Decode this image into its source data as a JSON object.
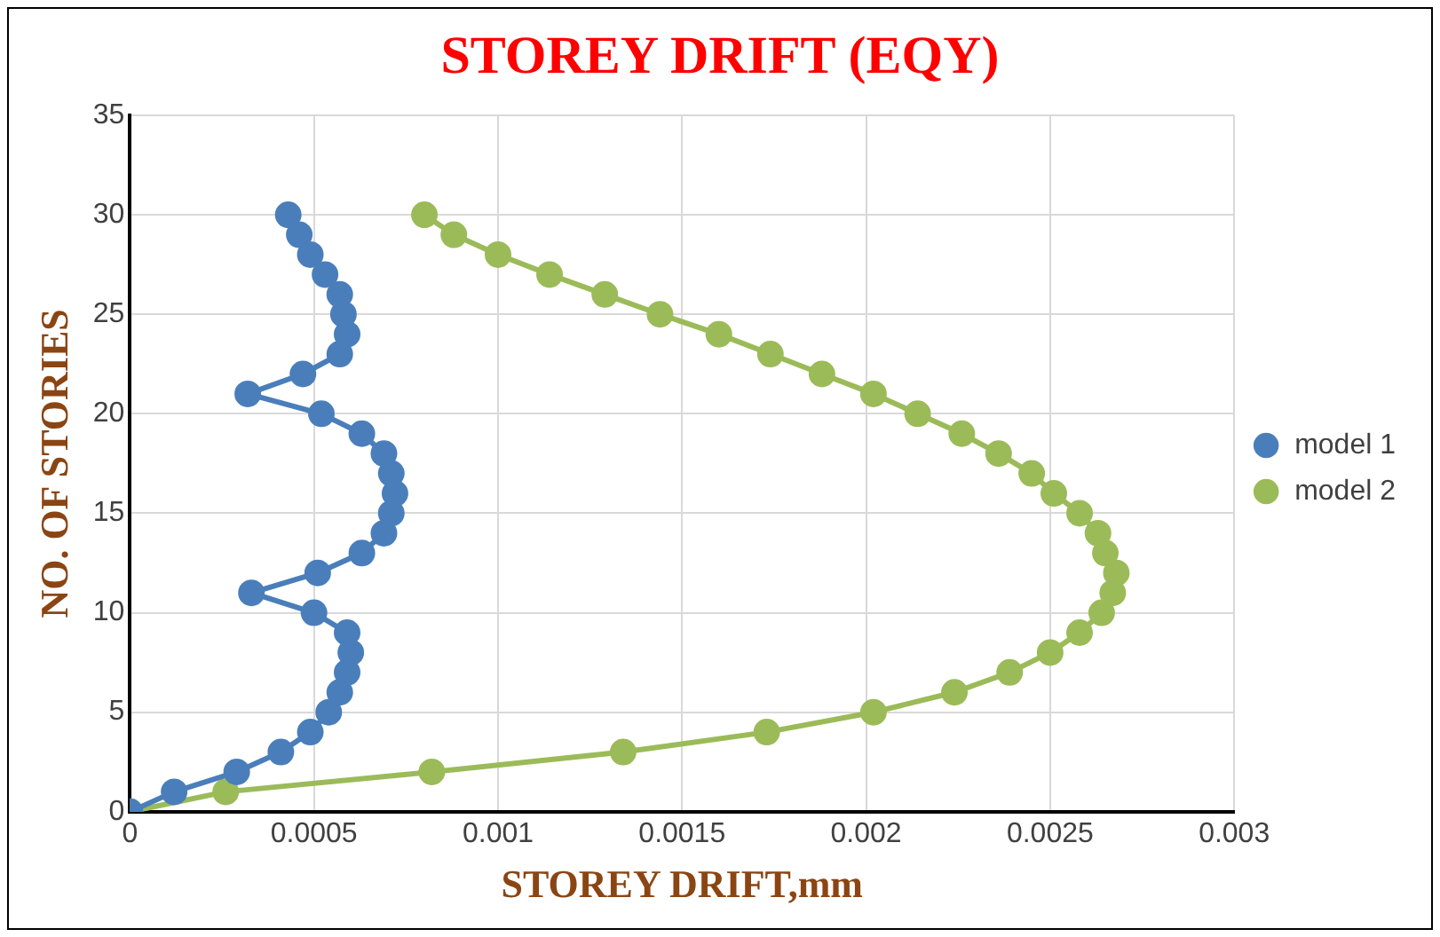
{
  "chart_data": {
    "type": "line",
    "title": "STOREY DRIFT (EQY)",
    "xlabel": "STOREY DRIFT,mm",
    "ylabel": "NO. OF STORIES",
    "xlim": [
      0,
      0.003
    ],
    "xticks": [
      0,
      0.0005,
      0.001,
      0.0015,
      0.002,
      0.0025,
      0.003
    ],
    "ylim": [
      0,
      35
    ],
    "yticks": [
      0,
      5,
      10,
      15,
      20,
      25,
      30,
      35
    ],
    "grid": true,
    "legend": "right",
    "marker": "circle",
    "line_style": "solid",
    "series": [
      {
        "name": "model 1",
        "color": "#4a7ebb",
        "x": [
          0,
          0.00012,
          0.00029,
          0.00041,
          0.00049,
          0.00054,
          0.00057,
          0.00059,
          0.0006,
          0.00059,
          0.0005,
          0.00033,
          0.00051,
          0.00063,
          0.00069,
          0.00071,
          0.00072,
          0.00071,
          0.00069,
          0.00063,
          0.00052,
          0.00032,
          0.00047,
          0.00057,
          0.00059,
          0.00058,
          0.00057,
          0.00053,
          0.00049,
          0.00046,
          0.00043
        ],
        "values": [
          0,
          1,
          2,
          3,
          4,
          5,
          6,
          7,
          8,
          9,
          10,
          11,
          12,
          13,
          14,
          15,
          16,
          17,
          18,
          19,
          20,
          21,
          22,
          23,
          24,
          25,
          26,
          27,
          28,
          29,
          30
        ]
      },
      {
        "name": "model 2",
        "color": "#9bbb59",
        "x": [
          0,
          0.00026,
          0.00082,
          0.00134,
          0.00173,
          0.00202,
          0.00224,
          0.00239,
          0.0025,
          0.00258,
          0.00264,
          0.00267,
          0.00268,
          0.00265,
          0.00263,
          0.00258,
          0.00251,
          0.00245,
          0.00236,
          0.00226,
          0.00214,
          0.00202,
          0.00188,
          0.00174,
          0.0016,
          0.00144,
          0.00129,
          0.00114,
          0.001,
          0.00088,
          0.0008
        ],
        "values": [
          0,
          1,
          2,
          3,
          4,
          5,
          6,
          7,
          8,
          9,
          10,
          11,
          12,
          13,
          14,
          15,
          16,
          17,
          18,
          19,
          20,
          21,
          22,
          23,
          24,
          25,
          26,
          27,
          28,
          29,
          30
        ]
      }
    ]
  }
}
